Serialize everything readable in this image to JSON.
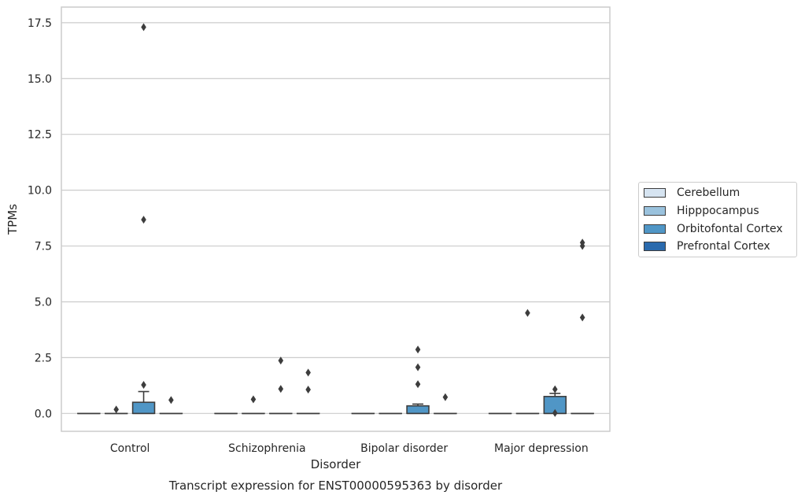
{
  "chart_data": {
    "type": "box",
    "title": "Transcript expression for ENST00000595363 by disorder",
    "xlabel": "Disorder",
    "ylabel": "TPMs",
    "ylim": [
      -0.8,
      18.2
    ],
    "yticks": [
      0.0,
      2.5,
      5.0,
      7.5,
      10.0,
      12.5,
      15.0,
      17.5
    ],
    "ytick_labels": [
      "0.0",
      "2.5",
      "5.0",
      "7.5",
      "10.0",
      "12.5",
      "15.0",
      "17.5"
    ],
    "grid": "horizontal",
    "legend_position": "right",
    "categories": [
      "Control",
      "Schizophrenia",
      "Bipolar disorder",
      "Major depression"
    ],
    "series": [
      {
        "name": "Cerebellum",
        "color": "#d6e4f1",
        "boxes": [
          {
            "q1": 0,
            "median": 0,
            "q3": 0,
            "whisker_low": 0,
            "whisker_high": 0,
            "outliers": []
          },
          {
            "q1": 0,
            "median": 0,
            "q3": 0,
            "whisker_low": 0,
            "whisker_high": 0,
            "outliers": []
          },
          {
            "q1": 0,
            "median": 0,
            "q3": 0,
            "whisker_low": 0,
            "whisker_high": 0,
            "outliers": []
          },
          {
            "q1": 0,
            "median": 0,
            "q3": 0,
            "whisker_low": 0,
            "whisker_high": 0,
            "outliers": []
          }
        ]
      },
      {
        "name": "Hipppocampus",
        "color": "#9ac2dd",
        "boxes": [
          {
            "q1": 0,
            "median": 0,
            "q3": 0,
            "whisker_low": 0,
            "whisker_high": 0,
            "outliers": [
              0.18
            ]
          },
          {
            "q1": 0,
            "median": 0,
            "q3": 0,
            "whisker_low": 0,
            "whisker_high": 0,
            "outliers": [
              0.63
            ]
          },
          {
            "q1": 0,
            "median": 0,
            "q3": 0,
            "whisker_low": 0,
            "whisker_high": 0,
            "outliers": []
          },
          {
            "q1": 0,
            "median": 0,
            "q3": 0,
            "whisker_low": 0,
            "whisker_high": 0,
            "outliers": [
              4.5
            ]
          }
        ]
      },
      {
        "name": "Orbitofontal Cortex",
        "color": "#5096c6",
        "boxes": [
          {
            "q1": 0,
            "median": 0,
            "q3": 0.5,
            "whisker_low": 0,
            "whisker_high": 0.98,
            "outliers": [
              1.28,
              8.68,
              17.3
            ]
          },
          {
            "q1": 0,
            "median": 0,
            "q3": 0,
            "whisker_low": 0,
            "whisker_high": 0,
            "outliers": [
              1.1,
              2.37
            ]
          },
          {
            "q1": 0,
            "median": 0,
            "q3": 0.34,
            "whisker_low": 0,
            "whisker_high": 0.42,
            "outliers": [
              1.31,
              2.07,
              2.86
            ]
          },
          {
            "q1": 0,
            "median": 0,
            "q3": 0.76,
            "whisker_low": 0,
            "whisker_high": 0.9,
            "outliers": [
              0.02,
              1.08
            ]
          }
        ]
      },
      {
        "name": "Prefrontal Cortex",
        "color": "#2a6aad",
        "boxes": [
          {
            "q1": 0,
            "median": 0,
            "q3": 0,
            "whisker_low": 0,
            "whisker_high": 0,
            "outliers": [
              0.6
            ]
          },
          {
            "q1": 0,
            "median": 0,
            "q3": 0,
            "whisker_low": 0,
            "whisker_high": 0,
            "outliers": [
              1.07,
              1.83
            ]
          },
          {
            "q1": 0,
            "median": 0,
            "q3": 0,
            "whisker_low": 0,
            "whisker_high": 0,
            "outliers": [
              0.73
            ]
          },
          {
            "q1": 0,
            "median": 0,
            "q3": 0,
            "whisker_low": 0,
            "whisker_high": 0,
            "outliers": [
              4.3,
              7.5,
              7.65
            ]
          }
        ]
      }
    ]
  }
}
